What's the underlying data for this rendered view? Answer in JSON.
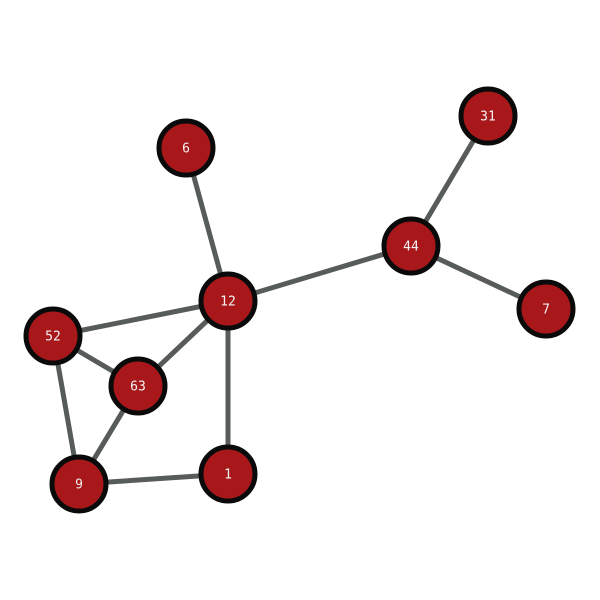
{
  "graph": {
    "colors": {
      "node_fill": "#a8181b",
      "node_stroke": "#0a0a0a",
      "edge": "#575b5a",
      "label": "#f2f2f2",
      "background": "#ffffff"
    },
    "nodes": [
      {
        "id": "6",
        "label": "6"
      },
      {
        "id": "31",
        "label": "31"
      },
      {
        "id": "44",
        "label": "44"
      },
      {
        "id": "7",
        "label": "7"
      },
      {
        "id": "12",
        "label": "12"
      },
      {
        "id": "52",
        "label": "52"
      },
      {
        "id": "63",
        "label": "63"
      },
      {
        "id": "1",
        "label": "1"
      },
      {
        "id": "9",
        "label": "9"
      }
    ],
    "edges": [
      {
        "source": "6",
        "target": "12"
      },
      {
        "source": "12",
        "target": "44"
      },
      {
        "source": "44",
        "target": "31"
      },
      {
        "source": "44",
        "target": "7"
      },
      {
        "source": "12",
        "target": "52"
      },
      {
        "source": "12",
        "target": "63"
      },
      {
        "source": "12",
        "target": "1"
      },
      {
        "source": "52",
        "target": "63"
      },
      {
        "source": "52",
        "target": "9"
      },
      {
        "source": "63",
        "target": "9"
      },
      {
        "source": "9",
        "target": "1"
      }
    ]
  }
}
